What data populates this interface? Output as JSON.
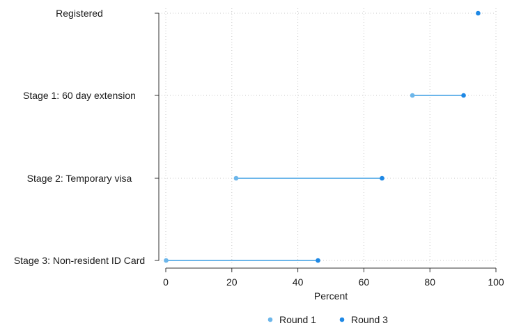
{
  "chart_data": {
    "type": "dot-range",
    "categories": [
      "Registered",
      "Stage 1: 60 day extension",
      "Stage 2: Temporary visa",
      "Stage 3: Non-resident ID Card"
    ],
    "series": [
      {
        "name": "Round 1",
        "color": "#6cb6ea",
        "values": [
          null,
          74.7,
          21.3,
          0.1
        ]
      },
      {
        "name": "Round 3",
        "color": "#1e88e5",
        "values": [
          94.6,
          90.2,
          65.5,
          46.1
        ]
      }
    ],
    "connector_color": "#6cb6ea",
    "xlabel": "Percent",
    "xlim": [
      0,
      100
    ],
    "xticks": [
      0,
      20,
      40,
      60,
      80,
      100
    ],
    "grid": true,
    "legend_position": "bottom"
  }
}
